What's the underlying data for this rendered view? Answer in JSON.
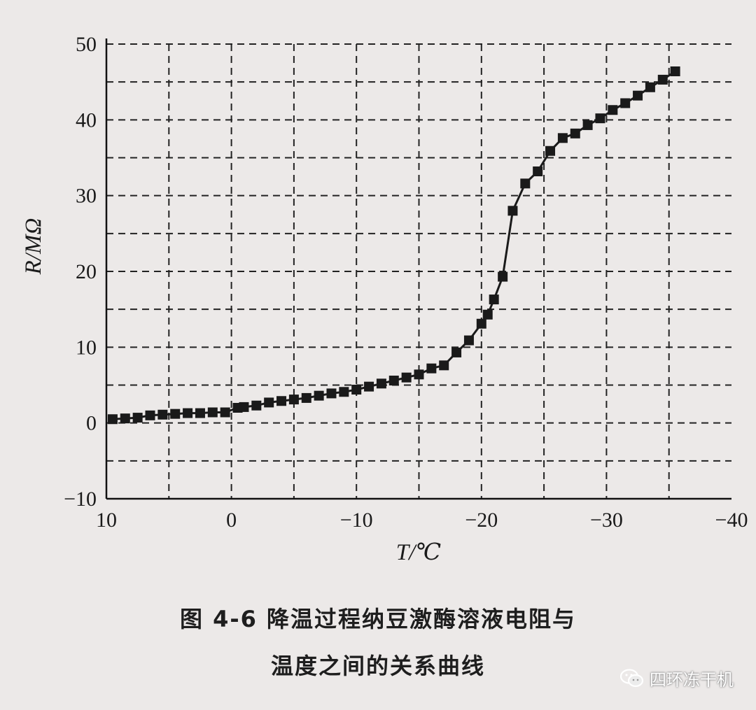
{
  "chart_data": {
    "type": "line",
    "xlabel": "T/℃",
    "ylabel": "R/MΩ",
    "xlim": [
      10,
      -40
    ],
    "ylim": [
      -10,
      50
    ],
    "x_ticks": [
      "10",
      "0",
      "−10",
      "−20",
      "−30",
      "−40"
    ],
    "y_ticks": [
      "50",
      "40",
      "30",
      "20",
      "10",
      "0",
      "−10"
    ],
    "grid": "dashed",
    "marker": "square",
    "series": [
      {
        "name": "",
        "points": [
          [
            9.5,
            0.5
          ],
          [
            8.5,
            0.6
          ],
          [
            7.5,
            0.7
          ],
          [
            6.5,
            1.0
          ],
          [
            5.5,
            1.1
          ],
          [
            4.5,
            1.2
          ],
          [
            3.5,
            1.3
          ],
          [
            2.5,
            1.3
          ],
          [
            1.5,
            1.4
          ],
          [
            0.5,
            1.4
          ],
          [
            -0.5,
            2.0
          ],
          [
            -1.0,
            2.1
          ],
          [
            -2.0,
            2.3
          ],
          [
            -3.0,
            2.7
          ],
          [
            -4.0,
            2.9
          ],
          [
            -5.0,
            3.1
          ],
          [
            -6.0,
            3.3
          ],
          [
            -7.0,
            3.6
          ],
          [
            -8.0,
            3.9
          ],
          [
            -9.0,
            4.1
          ],
          [
            -10.0,
            4.4
          ],
          [
            -11.0,
            4.8
          ],
          [
            -12.0,
            5.2
          ],
          [
            -13.0,
            5.6
          ],
          [
            -14.0,
            6.0
          ],
          [
            -15.0,
            6.4
          ],
          [
            -16.0,
            7.2
          ],
          [
            -17.0,
            7.6
          ],
          [
            -18.0,
            9.3
          ],
          [
            -19.0,
            10.9
          ],
          [
            -20.0,
            13.1
          ],
          [
            -20.5,
            14.3
          ],
          [
            -21.0,
            16.3
          ],
          [
            -21.7,
            19.3
          ],
          [
            -22.5,
            28.0
          ],
          [
            -23.5,
            31.6
          ],
          [
            -24.5,
            33.2
          ],
          [
            -25.5,
            35.9
          ],
          [
            -26.5,
            37.6
          ],
          [
            -27.5,
            38.2
          ],
          [
            -28.5,
            39.3
          ],
          [
            -29.5,
            40.2
          ],
          [
            -30.5,
            41.3
          ],
          [
            -31.5,
            42.2
          ],
          [
            -32.5,
            43.2
          ],
          [
            -33.5,
            44.3
          ],
          [
            -34.5,
            45.3
          ],
          [
            -35.5,
            46.4
          ]
        ]
      }
    ],
    "colors": {
      "line": "#1a1a1a",
      "marker": "#1a1a1a",
      "grid": "#222222",
      "background": "#ece9e8"
    }
  },
  "caption": {
    "line1": "图 4-6   降温过程纳豆激酶溶液电阻与",
    "line2": "温度之间的关系曲线"
  },
  "watermark": {
    "text": "四环冻干机",
    "icon": "wechat-icon"
  }
}
